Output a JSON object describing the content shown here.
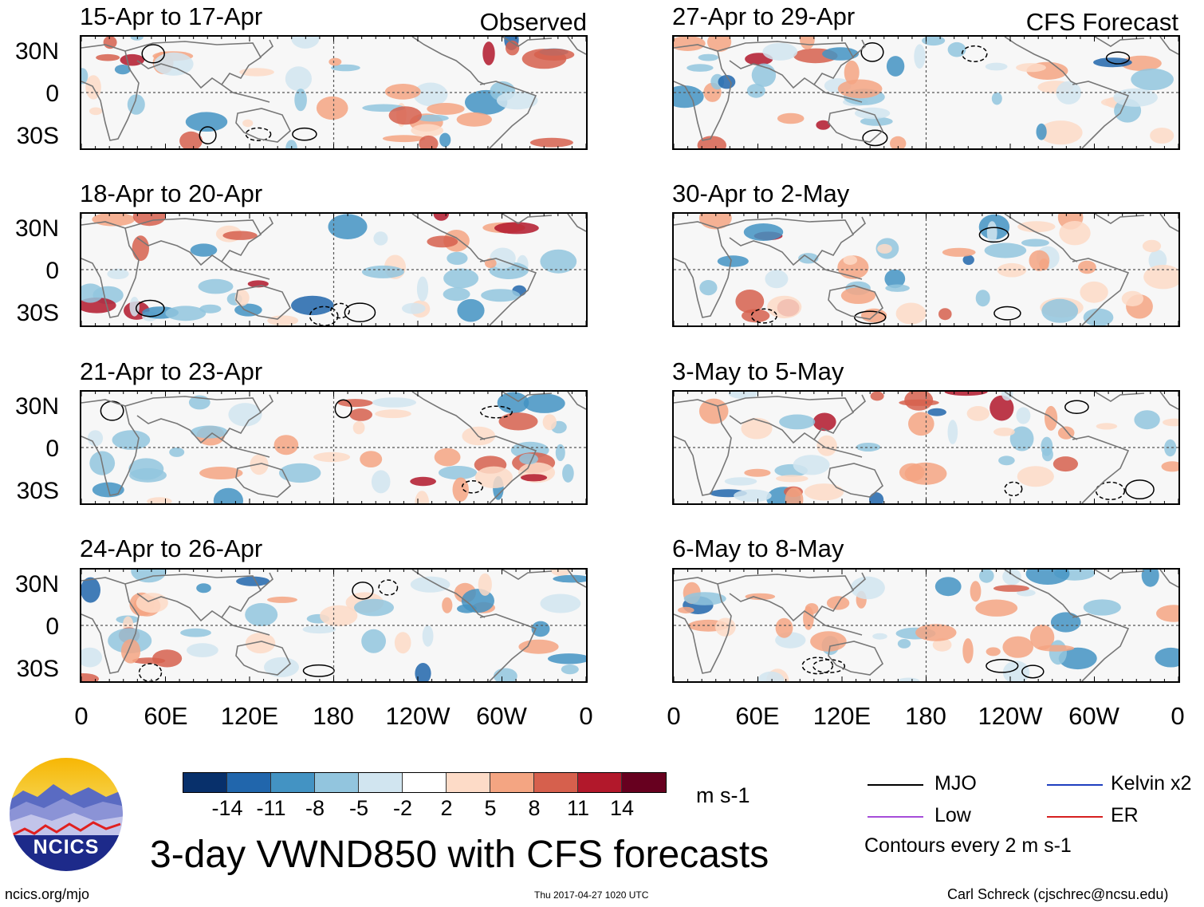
{
  "observed_label": "Observed",
  "forecast_label": "CFS Forecast",
  "panels_observed": [
    {
      "title": "15-Apr to 17-Apr"
    },
    {
      "title": "18-Apr to 20-Apr"
    },
    {
      "title": "21-Apr to 23-Apr"
    },
    {
      "title": "24-Apr to 26-Apr"
    }
  ],
  "panels_forecast": [
    {
      "title": "27-Apr to 29-Apr"
    },
    {
      "title": "30-Apr to 2-May"
    },
    {
      "title": "3-May to 5-May"
    },
    {
      "title": "6-May to 8-May"
    }
  ],
  "lat_labels": [
    "30N",
    "0",
    "30S"
  ],
  "lon_labels": [
    "0",
    "60E",
    "120E",
    "180",
    "120W",
    "60W",
    "0"
  ],
  "colorbar": {
    "colors": [
      "#08306b",
      "#2166ac",
      "#4393c3",
      "#92c5de",
      "#d1e5f0",
      "#ffffff",
      "#fddbc7",
      "#f4a582",
      "#d6604d",
      "#b2182b",
      "#67001f"
    ],
    "ticks": [
      "-14",
      "-11",
      "-8",
      "-5",
      "-2",
      "2",
      "5",
      "8",
      "11",
      "14"
    ],
    "units": "m s-1"
  },
  "title": "3-day VWND850 with CFS forecasts",
  "logo_text": "NCICS",
  "url": "ncics.org/mjo",
  "timestamp": "Thu 2017-04-27 1020 UTC",
  "author": "Carl Schreck (cjschrec@ncsu.edu)",
  "legend": {
    "items": [
      {
        "label": "MJO",
        "color": "#000000"
      },
      {
        "label": "Kelvin x2",
        "color": "#1f3fbf"
      },
      {
        "label": "Low",
        "color": "#a64dd9"
      },
      {
        "label": "ER",
        "color": "#d62020"
      }
    ],
    "contour_note": "Contours every 2 m s-1"
  }
}
